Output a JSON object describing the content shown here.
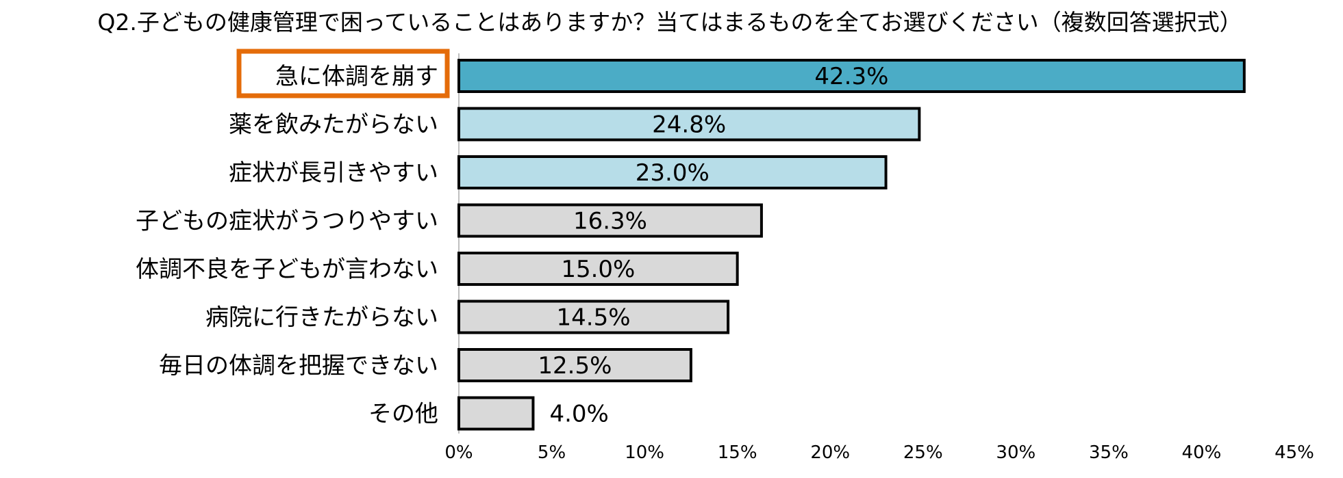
{
  "chart_data": {
    "type": "bar",
    "orientation": "horizontal",
    "title": "Q2.子どもの健康管理で困っていることはありますか？当てはまるものを全てお選びください（複数回答選択式）",
    "categories": [
      "急に体調を崩す",
      "薬を飲みたがらない",
      "症状が長引きやすい",
      "子どもの症状がうつりやすい",
      "体調不良を子どもが言わない",
      "病院に行きたがらない",
      "毎日の体調を把握できない",
      "その他"
    ],
    "values": [
      42.3,
      24.8,
      23.0,
      16.3,
      15.0,
      14.5,
      12.5,
      4.0
    ],
    "value_labels": [
      "42.3%",
      "24.8%",
      "23.0%",
      "16.3%",
      "15.0%",
      "14.5%",
      "12.5%",
      "4.0%"
    ],
    "bar_colors": [
      "#4bacc6",
      "#b7dde8",
      "#b7dde8",
      "#d9d9d9",
      "#d9d9d9",
      "#d9d9d9",
      "#d9d9d9",
      "#d9d9d9"
    ],
    "highlight_border_color": "#e46c0a",
    "highlighted_category": "急に体調を崩す",
    "xlim": [
      0,
      45
    ],
    "x_ticks": [
      0,
      5,
      10,
      15,
      20,
      25,
      30,
      35,
      40,
      45
    ],
    "x_tick_labels": [
      "0%",
      "5%",
      "10%",
      "15%",
      "20%",
      "25%",
      "30%",
      "35%",
      "40%",
      "45%"
    ],
    "grid": false,
    "legend": "none"
  }
}
